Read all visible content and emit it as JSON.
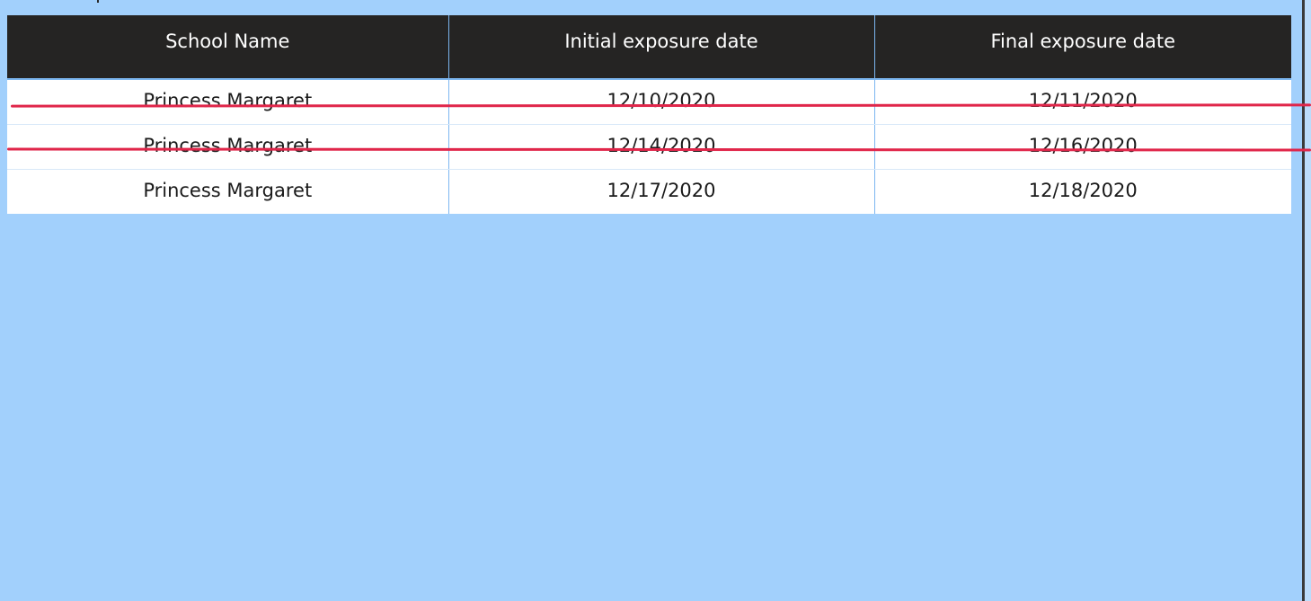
{
  "table": {
    "headers": [
      "School Name",
      "Initial exposure date",
      "Final exposure date"
    ],
    "rows": [
      [
        "Princess Margaret",
        "12/10/2020",
        "12/11/2020"
      ],
      [
        "Princess Margaret",
        "12/14/2020",
        "12/16/2020"
      ],
      [
        "Princess Margaret",
        "12/17/2020",
        "12/18/2020"
      ]
    ]
  },
  "annotations": {
    "strike_color": "#e0264a",
    "strike_lines": 2
  },
  "colors": {
    "background": "#a2d0fc",
    "header_background": "#252423",
    "header_text": "#ffffff",
    "cell_background": "#ffffff",
    "divider": "#7cb6f0"
  }
}
